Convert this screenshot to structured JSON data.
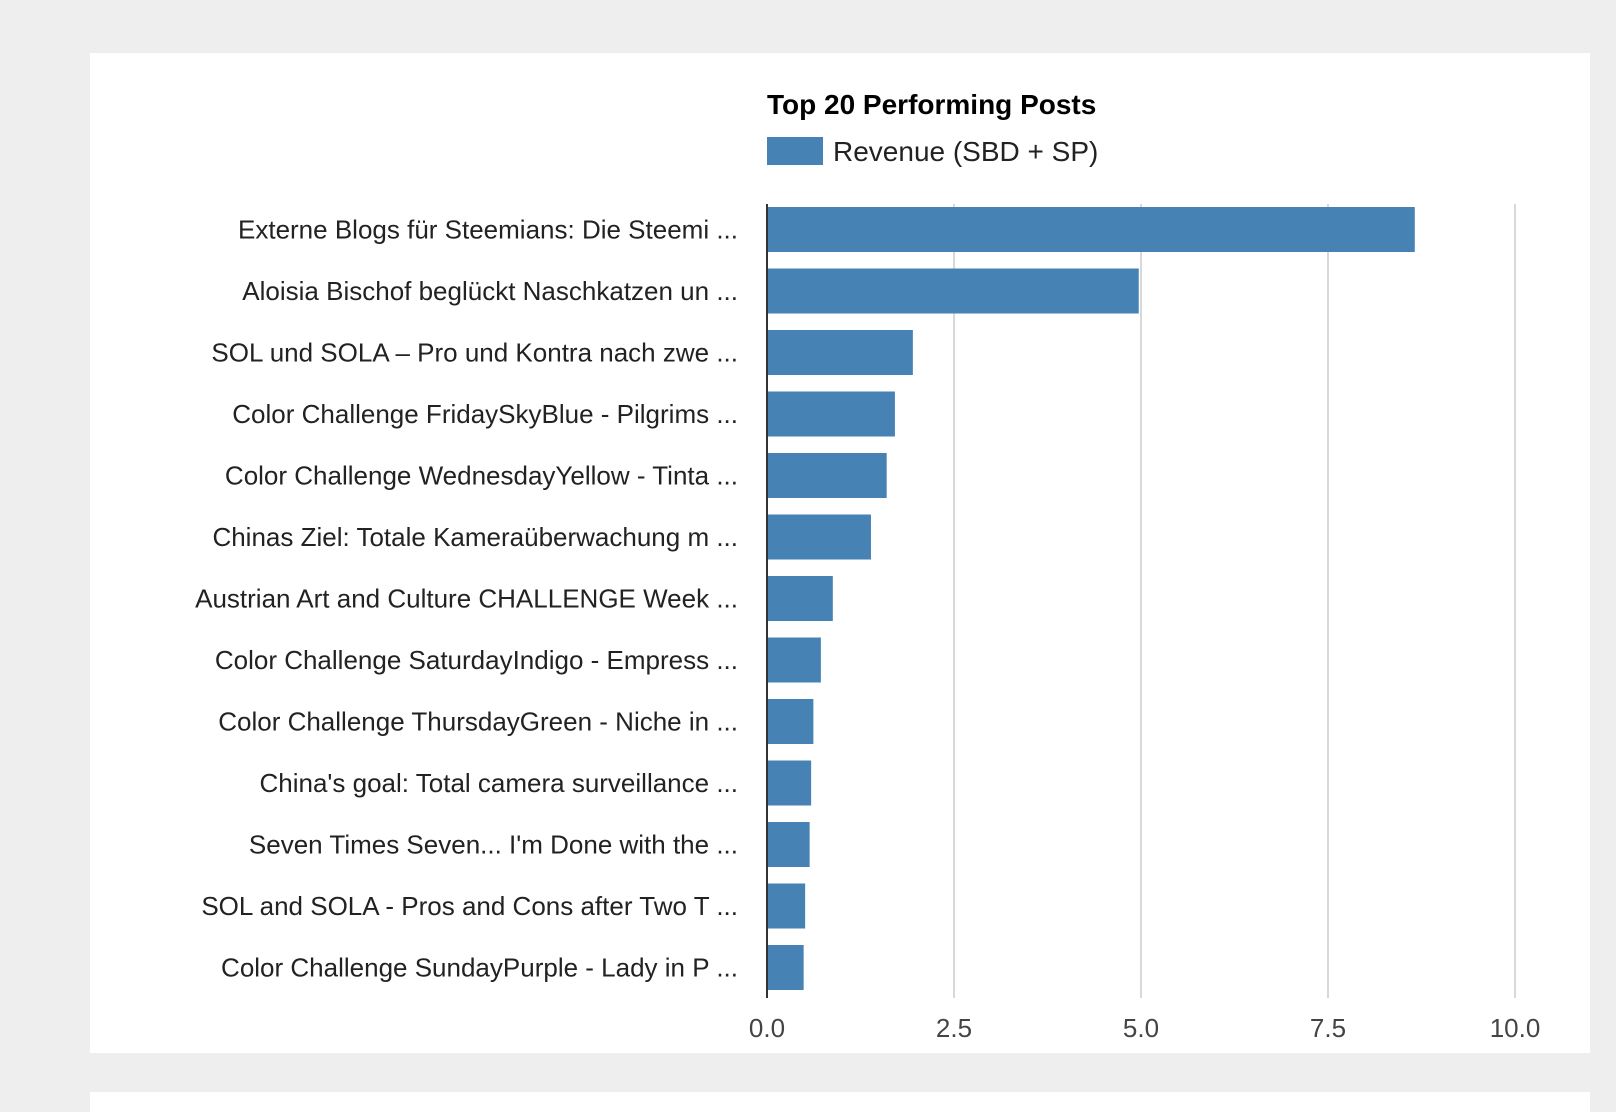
{
  "chart_data": {
    "type": "bar",
    "orientation": "horizontal",
    "title": "Top 20 Performing Posts",
    "legend": {
      "position": "top",
      "entries": [
        "Revenue (SBD + SP)"
      ]
    },
    "colors": {
      "bar": "#4682b4",
      "grid": "#cccccc",
      "axis": "#333333",
      "background": "#eeeeee",
      "panel": "#ffffff"
    },
    "categories": [
      "Externe Blogs für Steemians: Die Steemi ...",
      "Aloisia Bischof beglückt Naschkatzen un ...",
      "SOL und SOLA – Pro und Kontra nach zwe ...",
      "Color Challenge FridaySkyBlue - Pilgrims ...",
      "Color Challenge WednesdayYellow - Tinta ...",
      "Chinas Ziel: Totale Kameraüberwachung m ...",
      "Austrian Art and Culture CHALLENGE Week ...",
      "Color Challenge SaturdayIndigo - Empress ...",
      "Color Challenge ThursdayGreen - Niche in ...",
      "China's goal: Total camera surveillance ...",
      "Seven Times Seven... I'm Done with the ...",
      "SOL and SOLA - Pros and Cons after Two T ...",
      "Color Challenge SundayPurple - Lady in P ..."
    ],
    "series": [
      {
        "name": "Revenue (SBD + SP)",
        "values": [
          8.66,
          4.97,
          1.95,
          1.71,
          1.6,
          1.39,
          0.88,
          0.72,
          0.62,
          0.59,
          0.57,
          0.51,
          0.49
        ]
      }
    ],
    "xlim": [
      0,
      10
    ],
    "xticks": [
      "0.0",
      "2.5",
      "5.0",
      "7.5",
      "10.0"
    ],
    "grid": true
  }
}
